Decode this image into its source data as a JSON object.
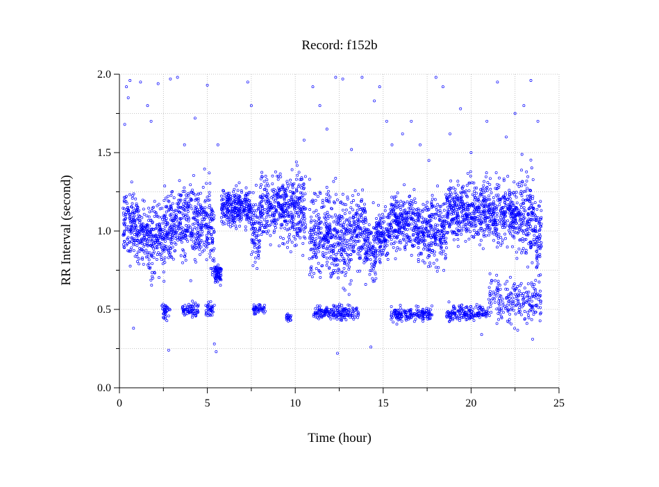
{
  "chart_data": {
    "type": "scatter",
    "title": "Record:  f152b",
    "xlabel": "Time (hour)",
    "ylabel": "RR Interval (second)",
    "xlim": [
      0,
      25
    ],
    "ylim": [
      0.0,
      2.0
    ],
    "x_ticks": [
      0,
      5,
      10,
      15,
      20,
      25
    ],
    "x_tick_labels": [
      "0",
      "5",
      "10",
      "15",
      "20",
      "25"
    ],
    "y_ticks": [
      0.0,
      0.5,
      1.0,
      1.5,
      2.0
    ],
    "y_tick_labels": [
      "0.0",
      "0.5",
      "1.0",
      "1.5",
      "2.0"
    ],
    "grid": true,
    "marker": "open-circle",
    "colors": {
      "points": "#0000ff",
      "grid": "#b0b0b0",
      "axes": "#000000"
    },
    "series": [
      {
        "x_range": [
          0.2,
          24.0
        ],
        "band_segments": [
          {
            "t": [
              0.2,
              1.0
            ],
            "center": 1.05,
            "spread": 0.35
          },
          {
            "t": [
              1.0,
              1.6
            ],
            "center": 1.0,
            "spread": 0.35
          },
          {
            "t": [
              1.6,
              2.6
            ],
            "center": 0.95,
            "spread": 0.4
          },
          {
            "t": [
              2.6,
              3.4
            ],
            "center": 1.05,
            "spread": 0.35
          },
          {
            "t": [
              3.4,
              5.0
            ],
            "center": 1.05,
            "spread": 0.4
          },
          {
            "t": [
              5.0,
              5.4
            ],
            "center": 1.0,
            "spread": 0.45
          },
          {
            "t": [
              5.4,
              5.8
            ],
            "center": 0.73,
            "spread": 0.1
          },
          {
            "t": [
              5.8,
              7.5
            ],
            "center": 1.15,
            "spread": 0.2
          },
          {
            "t": [
              7.5,
              8.0
            ],
            "center": 1.0,
            "spread": 0.4
          },
          {
            "t": [
              8.0,
              10.6
            ],
            "center": 1.15,
            "spread": 0.35
          },
          {
            "t": [
              10.8,
              12.0
            ],
            "center": 1.0,
            "spread": 0.45
          },
          {
            "t": [
              12.0,
              13.2
            ],
            "center": 0.95,
            "spread": 0.5
          },
          {
            "t": [
              13.2,
              14.0
            ],
            "center": 1.02,
            "spread": 0.4
          },
          {
            "t": [
              14.0,
              14.6
            ],
            "center": 0.9,
            "spread": 0.35
          },
          {
            "t": [
              14.6,
              15.4
            ],
            "center": 0.98,
            "spread": 0.25
          },
          {
            "t": [
              15.4,
              17.0
            ],
            "center": 1.05,
            "spread": 0.3
          },
          {
            "t": [
              17.0,
              18.6
            ],
            "center": 1.0,
            "spread": 0.35
          },
          {
            "t": [
              18.6,
              20.5
            ],
            "center": 1.13,
            "spread": 0.3
          },
          {
            "t": [
              20.5,
              22.5
            ],
            "center": 1.12,
            "spread": 0.35
          },
          {
            "t": [
              22.5,
              23.6
            ],
            "center": 1.1,
            "spread": 0.45
          },
          {
            "t": [
              23.6,
              24.0
            ],
            "center": 0.95,
            "spread": 0.4
          }
        ],
        "low_clusters": [
          {
            "t": [
              2.4,
              2.9
            ],
            "center": 0.49,
            "spread": 0.08
          },
          {
            "t": [
              3.5,
              4.5
            ],
            "center": 0.5,
            "spread": 0.08
          },
          {
            "t": [
              4.9,
              5.4
            ],
            "center": 0.5,
            "spread": 0.08
          },
          {
            "t": [
              7.6,
              8.3
            ],
            "center": 0.5,
            "spread": 0.06
          },
          {
            "t": [
              9.5,
              9.8
            ],
            "center": 0.45,
            "spread": 0.05
          },
          {
            "t": [
              11.0,
              12.0
            ],
            "center": 0.48,
            "spread": 0.06
          },
          {
            "t": [
              12.0,
              13.6
            ],
            "center": 0.48,
            "spread": 0.08
          },
          {
            "t": [
              15.4,
              17.8
            ],
            "center": 0.47,
            "spread": 0.08
          },
          {
            "t": [
              18.6,
              21.0
            ],
            "center": 0.48,
            "spread": 0.08
          },
          {
            "t": [
              21.0,
              24.0
            ],
            "center": 0.55,
            "spread": 0.25
          }
        ],
        "high_outliers": [
          [
            0.3,
            1.68
          ],
          [
            0.4,
            1.92
          ],
          [
            0.5,
            1.85
          ],
          [
            0.6,
            1.96
          ],
          [
            1.2,
            1.95
          ],
          [
            1.6,
            1.8
          ],
          [
            1.8,
            1.7
          ],
          [
            2.2,
            1.94
          ],
          [
            2.9,
            1.97
          ],
          [
            3.3,
            1.98
          ],
          [
            3.7,
            1.55
          ],
          [
            4.3,
            1.72
          ],
          [
            5.0,
            1.93
          ],
          [
            5.6,
            1.55
          ],
          [
            7.3,
            1.95
          ],
          [
            7.5,
            1.8
          ],
          [
            10.5,
            1.58
          ],
          [
            11.0,
            1.92
          ],
          [
            11.4,
            1.8
          ],
          [
            11.8,
            1.65
          ],
          [
            12.3,
            1.98
          ],
          [
            12.7,
            1.97
          ],
          [
            13.2,
            1.52
          ],
          [
            13.8,
            1.98
          ],
          [
            14.5,
            1.83
          ],
          [
            14.8,
            1.92
          ],
          [
            15.2,
            1.7
          ],
          [
            15.5,
            1.55
          ],
          [
            16.1,
            1.62
          ],
          [
            16.6,
            1.7
          ],
          [
            17.1,
            1.55
          ],
          [
            17.6,
            1.45
          ],
          [
            18.0,
            1.98
          ],
          [
            18.4,
            1.92
          ],
          [
            18.8,
            1.62
          ],
          [
            19.4,
            1.78
          ],
          [
            20.0,
            1.5
          ],
          [
            20.9,
            1.7
          ],
          [
            21.5,
            1.95
          ],
          [
            22.0,
            1.6
          ],
          [
            22.5,
            1.75
          ],
          [
            23.0,
            1.8
          ],
          [
            23.4,
            1.96
          ],
          [
            23.8,
            1.7
          ]
        ],
        "low_outliers": [
          [
            0.8,
            0.38
          ],
          [
            2.8,
            0.24
          ],
          [
            5.4,
            0.28
          ],
          [
            5.5,
            0.23
          ],
          [
            12.4,
            0.22
          ],
          [
            14.3,
            0.26
          ],
          [
            23.5,
            0.31
          ],
          [
            20.6,
            0.34
          ]
        ]
      }
    ]
  }
}
